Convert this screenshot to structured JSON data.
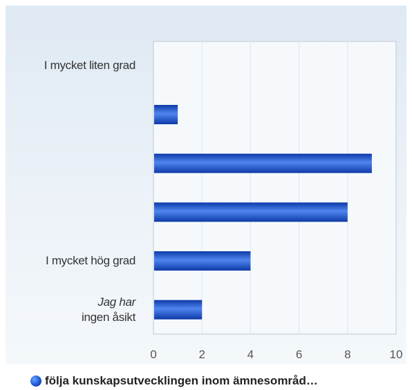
{
  "chart_data": {
    "type": "bar",
    "orientation": "horizontal",
    "categories": [
      [
        "I mycket liten grad"
      ],
      [
        ""
      ],
      [
        ""
      ],
      [
        ""
      ],
      [
        "I mycket hög grad"
      ],
      [
        "Jag har",
        "ingen åsikt"
      ]
    ],
    "series": [
      {
        "name": "följa kunskapsutvecklingen inom ämnesområd…",
        "values": [
          0,
          1,
          9,
          8,
          4,
          2
        ]
      }
    ],
    "xlim": [
      0,
      10
    ],
    "xticks": [
      0,
      2,
      4,
      6,
      8,
      10
    ],
    "grid": true,
    "legend": "bottom",
    "colors": {
      "bar_light": "#4f86ee",
      "bar_dark": "#0d3aa8",
      "grid": "#e2e8ee",
      "axis": "#bfc8d2"
    }
  }
}
